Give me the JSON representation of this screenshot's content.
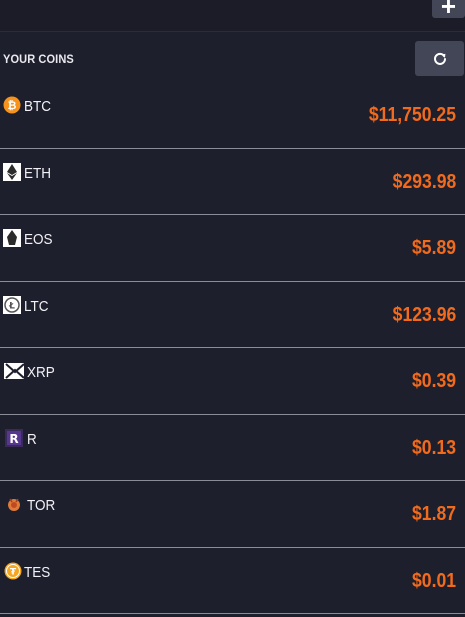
{
  "header": {
    "add_label": "+"
  },
  "section": {
    "title": "YOUR COINS"
  },
  "coins": [
    {
      "symbol": "BTC",
      "price": "$11,750.25",
      "icon": "bitcoin-icon"
    },
    {
      "symbol": "ETH",
      "price": "$293.98",
      "icon": "ethereum-icon"
    },
    {
      "symbol": "EOS",
      "price": "$5.89",
      "icon": "eos-icon"
    },
    {
      "symbol": "LTC",
      "price": "$123.96",
      "icon": "litecoin-icon"
    },
    {
      "symbol": "XRP",
      "price": "$0.39",
      "icon": "ripple-icon"
    },
    {
      "symbol": "R",
      "price": "$0.13",
      "icon": "revain-icon"
    },
    {
      "symbol": "TOR",
      "price": "$1.87",
      "icon": "tor-icon"
    },
    {
      "symbol": "TES",
      "price": "$0.01",
      "icon": "tes-icon"
    }
  ],
  "colors": {
    "background": "#1e1f2c",
    "price": "#f26b1d",
    "button": "#434656",
    "divider": "#8a8c98"
  }
}
